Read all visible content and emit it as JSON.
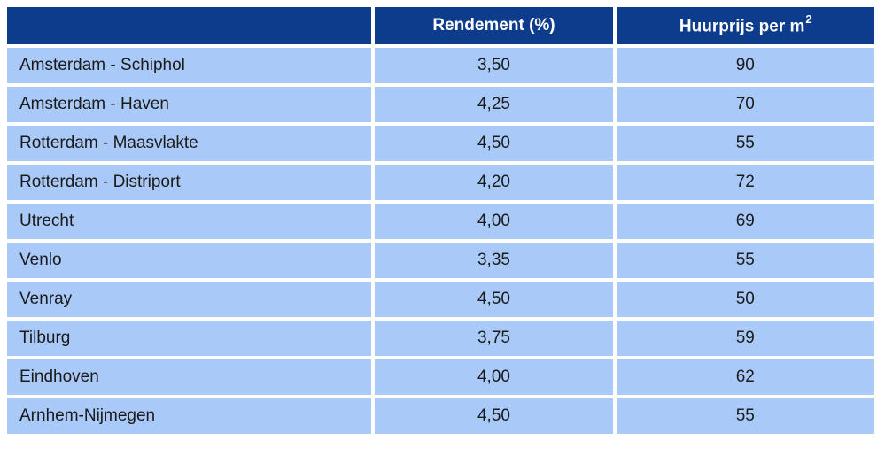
{
  "table": {
    "columns": [
      {
        "label": ""
      },
      {
        "label": "Rendement (%)"
      },
      {
        "label": "Huurprijs per m",
        "superscript": "2"
      }
    ],
    "rows": [
      {
        "location": "Amsterdam - Schiphol",
        "rendement": "3,50",
        "huurprijs": "90"
      },
      {
        "location": "Amsterdam - Haven",
        "rendement": "4,25",
        "huurprijs": "70"
      },
      {
        "location": "Rotterdam - Maasvlakte",
        "rendement": "4,50",
        "huurprijs": "55"
      },
      {
        "location": "Rotterdam - Distriport",
        "rendement": "4,20",
        "huurprijs": "72"
      },
      {
        "location": "Utrecht",
        "rendement": "4,00",
        "huurprijs": "69"
      },
      {
        "location": "Venlo",
        "rendement": "3,35",
        "huurprijs": "55"
      },
      {
        "location": "Venray",
        "rendement": "4,50",
        "huurprijs": "50"
      },
      {
        "location": "Tilburg",
        "rendement": "3,75",
        "huurprijs": "59"
      },
      {
        "location": "Eindhoven",
        "rendement": "4,00",
        "huurprijs": "62"
      },
      {
        "location": "Arnhem-Nijmegen",
        "rendement": "4,50",
        "huurprijs": "55"
      }
    ]
  },
  "colors": {
    "header_bg": "#0E3C8C",
    "header_text": "#FFFFFF",
    "row_bg": "#A9CAF8",
    "row_text": "#1A1A1A",
    "separator": "#FFFFFF"
  },
  "chart_data": {
    "type": "table",
    "title": "",
    "categories": [
      "Amsterdam - Schiphol",
      "Amsterdam - Haven",
      "Rotterdam - Maasvlakte",
      "Rotterdam - Distriport",
      "Utrecht",
      "Venlo",
      "Venray",
      "Tilburg",
      "Eindhoven",
      "Arnhem-Nijmegen"
    ],
    "series": [
      {
        "name": "Rendement (%)",
        "values": [
          3.5,
          4.25,
          4.5,
          4.2,
          4.0,
          3.35,
          4.5,
          3.75,
          4.0,
          4.5
        ]
      },
      {
        "name": "Huurprijs per m2",
        "values": [
          90,
          70,
          55,
          72,
          69,
          55,
          50,
          59,
          62,
          55
        ]
      }
    ]
  }
}
